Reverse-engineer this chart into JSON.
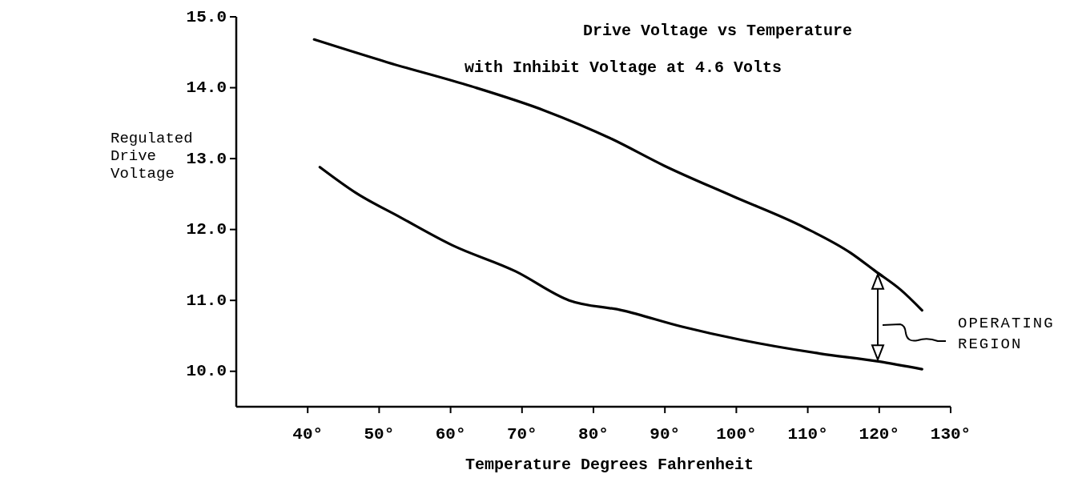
{
  "chart_data": {
    "type": "line",
    "title": "Drive Voltage vs Temperature",
    "subtitle": "with Inhibit Voltage at 4.6 Volts",
    "xlabel": "Temperature Degrees Fahrenheit",
    "ylabel": "Regulated Drive Voltage",
    "xlim": [
      30,
      130
    ],
    "ylim": [
      9.5,
      15.0
    ],
    "xticks": [
      {
        "value": 40,
        "label": "40°"
      },
      {
        "value": 50,
        "label": "50°"
      },
      {
        "value": 60,
        "label": "60°"
      },
      {
        "value": 70,
        "label": "70°"
      },
      {
        "value": 80,
        "label": "80°"
      },
      {
        "value": 90,
        "label": "90°"
      },
      {
        "value": 100,
        "label": "100°"
      },
      {
        "value": 110,
        "label": "110°"
      },
      {
        "value": 120,
        "label": "120°"
      },
      {
        "value": 130,
        "label": "130°"
      }
    ],
    "yticks": [
      {
        "value": 10,
        "label": "10.0"
      },
      {
        "value": 11,
        "label": "11.0"
      },
      {
        "value": 12,
        "label": "12.0"
      },
      {
        "value": 13,
        "label": "13.0"
      },
      {
        "value": 14,
        "label": "14.0"
      },
      {
        "value": 15,
        "label": "15.0"
      }
    ],
    "series": [
      {
        "color": "#000000",
        "x": [
          40.9,
          51.1,
          62.9,
          73.1,
          82.5,
          89.9,
          99.5,
          109.5,
          116.0,
          119.5,
          123.0,
          126.0
        ],
        "values": [
          14.68,
          14.36,
          14.02,
          13.68,
          13.28,
          12.9,
          12.47,
          12.03,
          11.67,
          11.41,
          11.15,
          10.86
        ]
      },
      {
        "color": "#000000",
        "x": [
          41.7,
          46.7,
          53.0,
          60.2,
          69.1,
          76.6,
          84.0,
          92.4,
          100.8,
          111.7,
          119.9,
          126.0
        ],
        "values": [
          12.88,
          12.52,
          12.17,
          11.78,
          11.41,
          11.0,
          10.86,
          10.63,
          10.44,
          10.25,
          10.14,
          10.03
        ]
      }
    ],
    "annotations": [
      "OPERATING REGION"
    ],
    "grid": false,
    "marker": "none",
    "line_style": "solid"
  }
}
